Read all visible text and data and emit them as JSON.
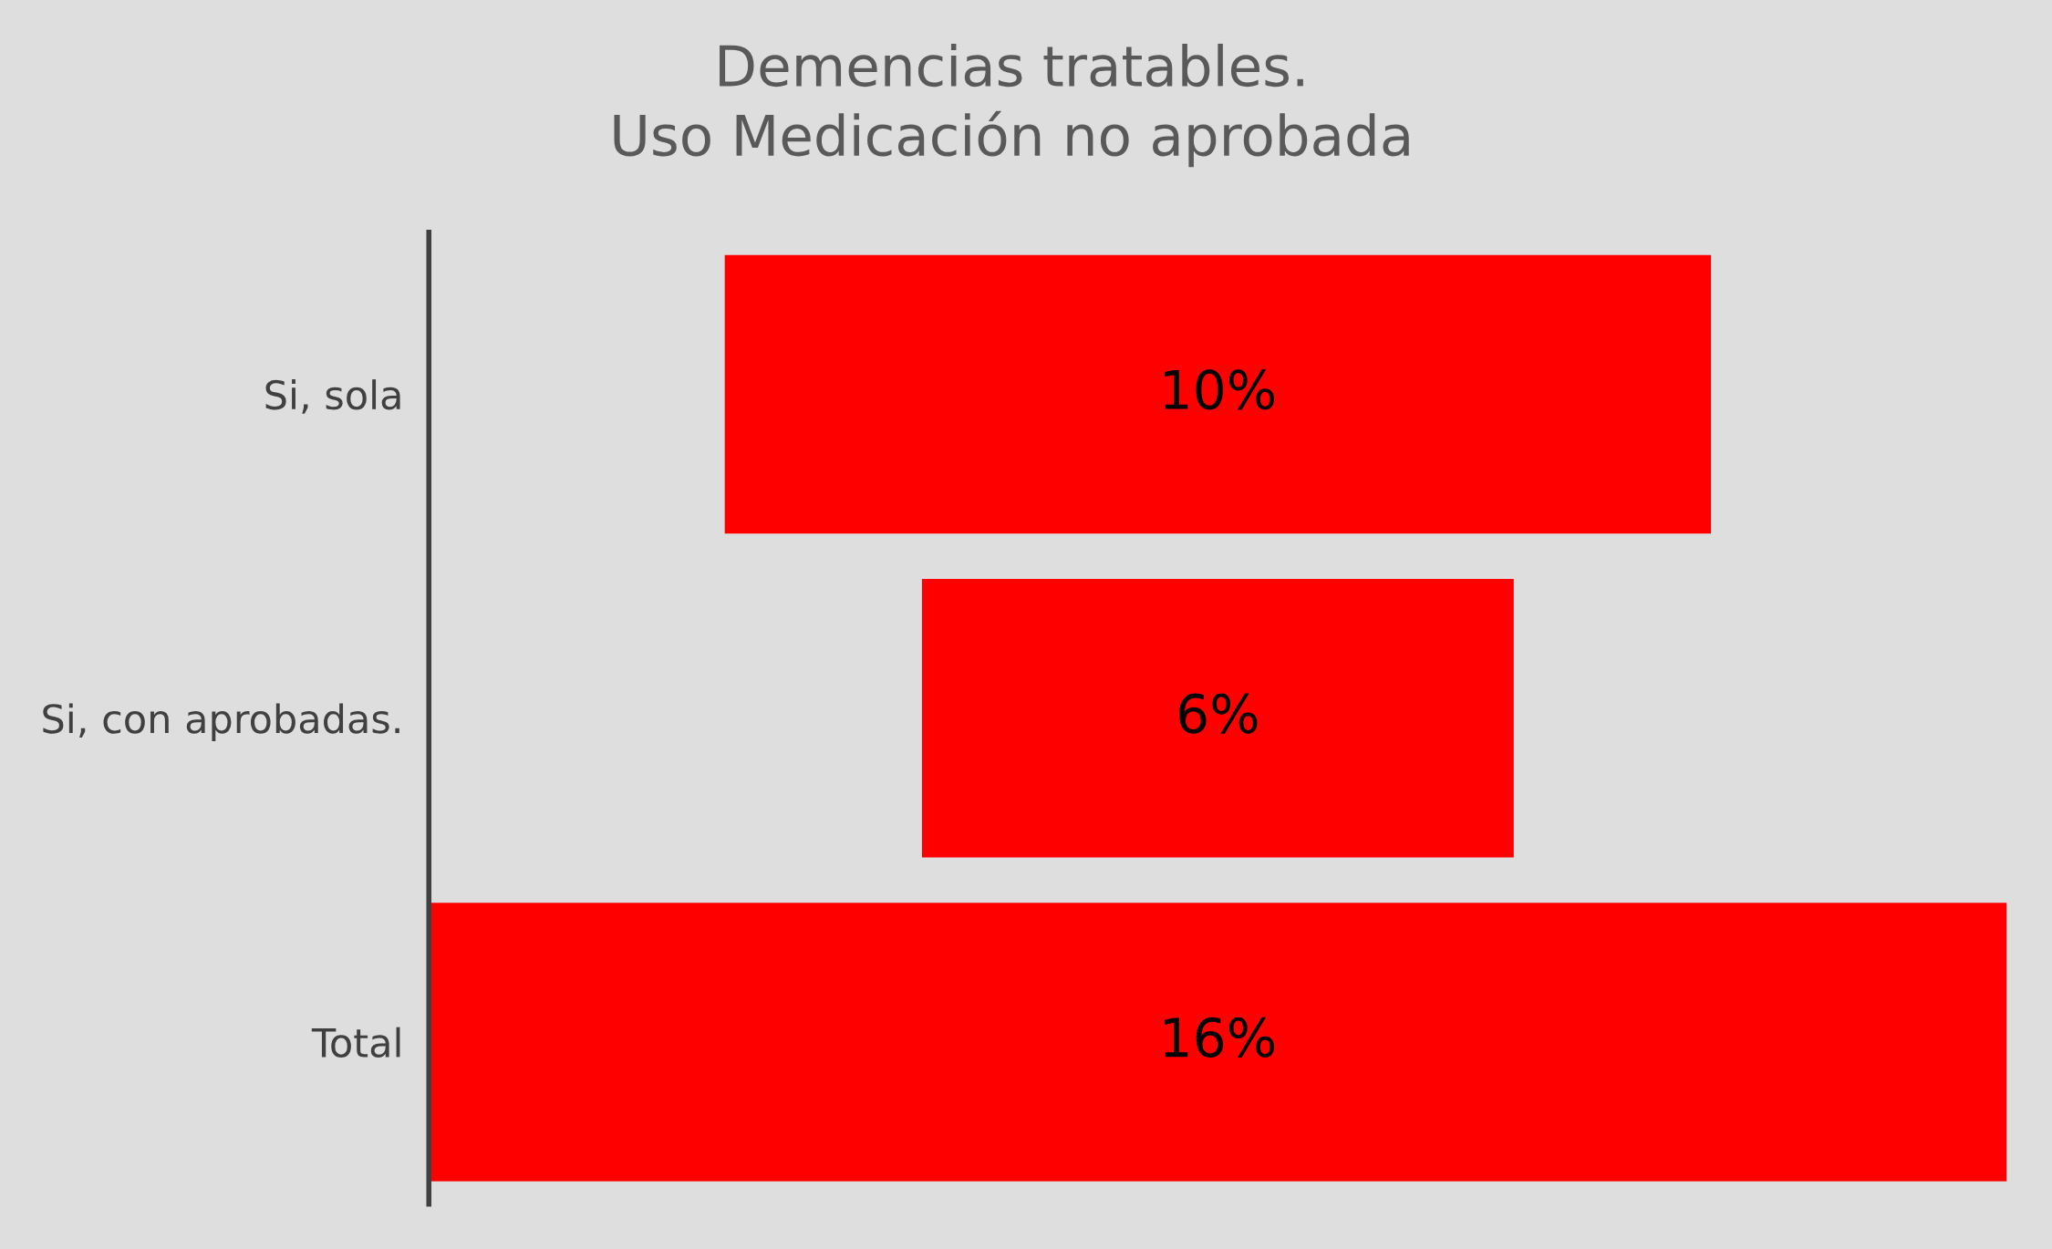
{
  "chart_data": {
    "type": "other",
    "title": "Demencias tratables.\nUso Medicación no aprobada",
    "categories": [
      "Si, sola",
      "Si, con aprobadas.",
      "Total"
    ],
    "values": [
      10,
      6,
      16
    ],
    "value_labels": [
      "10%",
      "6%",
      "16%"
    ],
    "color": "#ff0000"
  }
}
